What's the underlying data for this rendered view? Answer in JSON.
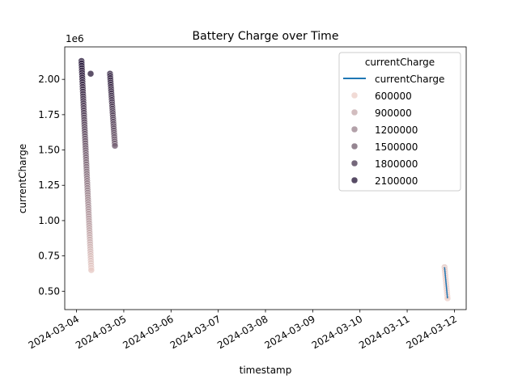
{
  "chart_data": {
    "type": "scatter",
    "title": "Battery Charge over Time",
    "xlabel": "timestamp",
    "ylabel": "currentCharge",
    "y_offset_label": "1e6",
    "x_ticks": [
      "2024-03-04",
      "2024-03-05",
      "2024-03-06",
      "2024-03-07",
      "2024-03-08",
      "2024-03-09",
      "2024-03-10",
      "2024-03-11",
      "2024-03-12"
    ],
    "y_ticks": [
      0.5,
      0.75,
      1.0,
      1.25,
      1.5,
      1.75,
      2.0
    ],
    "y_tick_labels": [
      "0.50",
      "0.75",
      "1.00",
      "1.25",
      "1.50",
      "1.75",
      "2.00"
    ],
    "xlim": [
      "2024-03-03T18:00",
      "2024-03-12T06:00"
    ],
    "ylim": [
      0.37,
      2.23
    ],
    "grid": false,
    "colormap": {
      "low_value": 600000,
      "low_color": "#edd1cb",
      "high_value": 2100000,
      "high_color": "#2d1e3e"
    },
    "legend": {
      "title": "currentCharge",
      "placement": "upper right",
      "line_entry": {
        "label": "currentCharge",
        "color": "#1f77b4"
      },
      "hue_entries": [
        {
          "label": "600000",
          "value": 600000
        },
        {
          "label": "900000",
          "value": 900000
        },
        {
          "label": "1200000",
          "value": 1200000
        },
        {
          "label": "1500000",
          "value": 1500000
        },
        {
          "label": "1800000",
          "value": 1800000
        },
        {
          "label": "2100000",
          "value": 2100000
        }
      ]
    },
    "series": [
      {
        "start": "2024-03-04T02:30",
        "end": "2024-03-04T07:30",
        "y_start": 2.13,
        "y_end": 0.65,
        "count": 90
      },
      {
        "x": "2024-03-04T07:10",
        "y": 2.04
      },
      {
        "start": "2024-03-04T17:00",
        "end": "2024-03-04T19:30",
        "y_start": 2.04,
        "y_end": 1.53,
        "count": 34
      },
      {
        "start": "2024-03-11T19:00",
        "end": "2024-03-11T20:30",
        "y_start": 0.67,
        "y_end": 0.45,
        "count": 16,
        "line": true
      }
    ]
  }
}
